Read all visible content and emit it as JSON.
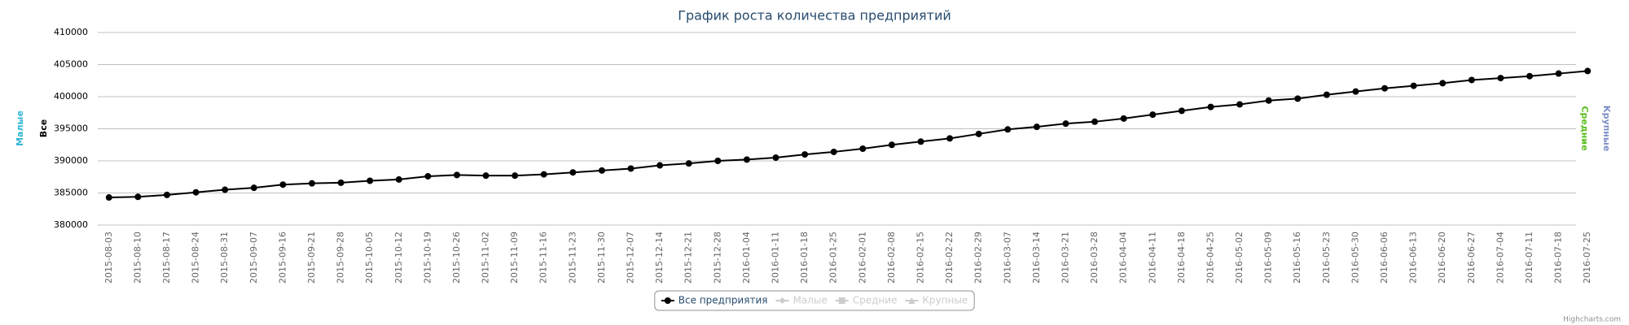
{
  "chart_data": {
    "type": "line",
    "title": "График роста количества предприятий",
    "credits": "Highcharts.com",
    "axis_titles": [
      {
        "title": "Малые",
        "color": "#2fb5d6",
        "side": "left"
      },
      {
        "title": "Все",
        "color": "#000000",
        "side": "left"
      },
      {
        "title": "Средние",
        "color": "#5cbf1f",
        "side": "right"
      },
      {
        "title": "Крупные",
        "color": "#7d8fc7",
        "side": "right"
      }
    ],
    "categories": [
      "2015-08-03",
      "2015-08-10",
      "2015-08-17",
      "2015-08-24",
      "2015-08-31",
      "2015-09-07",
      "2015-09-16",
      "2015-09-21",
      "2015-09-28",
      "2015-10-05",
      "2015-10-12",
      "2015-10-19",
      "2015-10-26",
      "2015-11-02",
      "2015-11-09",
      "2015-11-16",
      "2015-11-23",
      "2015-11-30",
      "2015-12-07",
      "2015-12-14",
      "2015-12-21",
      "2015-12-28",
      "2016-01-04",
      "2016-01-11",
      "2016-01-18",
      "2016-01-25",
      "2016-02-01",
      "2016-02-08",
      "2016-02-15",
      "2016-02-22",
      "2016-02-29",
      "2016-03-07",
      "2016-03-14",
      "2016-03-21",
      "2016-03-28",
      "2016-04-04",
      "2016-04-11",
      "2016-04-18",
      "2016-04-25",
      "2016-05-02",
      "2016-05-09",
      "2016-05-16",
      "2016-05-23",
      "2016-05-30",
      "2016-06-06",
      "2016-06-13",
      "2016-06-20",
      "2016-06-27",
      "2016-07-04",
      "2016-07-11",
      "2016-07-18",
      "2016-07-25"
    ],
    "series": [
      {
        "name": "Все предприятия",
        "color": "#000000",
        "marker": "circle",
        "visible": true,
        "values": [
          384300,
          384400,
          384700,
          385100,
          385500,
          385800,
          386300,
          386500,
          386600,
          386900,
          387100,
          387600,
          387800,
          387700,
          387700,
          387900,
          388200,
          388500,
          388800,
          389300,
          389600,
          390000,
          390200,
          390500,
          391000,
          391400,
          391900,
          392500,
          393000,
          393500,
          394200,
          394900,
          395300,
          395800,
          396100,
          396600,
          397200,
          397800,
          398400,
          398800,
          399400,
          399700,
          400300,
          400800,
          401300,
          401700,
          402100,
          402600,
          402900,
          403200,
          403600,
          404000
        ]
      },
      {
        "name": "Малые",
        "color": "#cccccc",
        "marker": "diamond",
        "visible": false
      },
      {
        "name": "Средние",
        "color": "#cccccc",
        "marker": "square",
        "visible": false
      },
      {
        "name": "Крупные",
        "color": "#cccccc",
        "marker": "triangle",
        "visible": false
      }
    ],
    "ylim": [
      380000,
      410000
    ],
    "yticks": [
      380000,
      385000,
      390000,
      395000,
      400000,
      405000,
      410000
    ],
    "grid": true
  }
}
